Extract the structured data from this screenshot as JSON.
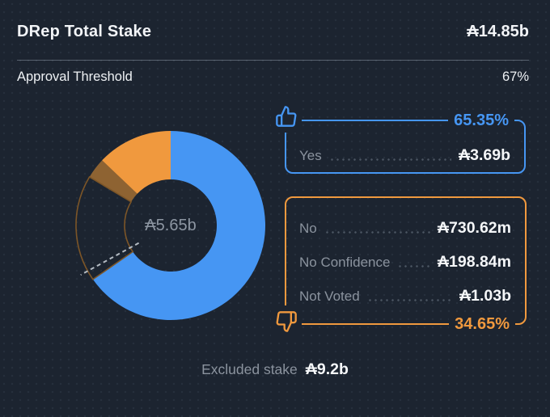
{
  "header": {
    "title": "DRep Total Stake",
    "total_stake": "₳14.85b"
  },
  "threshold": {
    "label": "Approval Threshold",
    "value": "67%"
  },
  "chart_data": {
    "type": "pie",
    "subtype": "donut",
    "title": "DRep Total Stake vote distribution",
    "center_label": "₳5.65b",
    "total_voted_stake": "₳5.65b",
    "threshold_percent": 67,
    "legend_position": "right",
    "segments": [
      {
        "name": "Yes",
        "value": "₳3.69b",
        "percent": 65.35,
        "color": "#4696f3",
        "style": "fill"
      },
      {
        "name": "Not Voted",
        "value": "₳1.03b",
        "percent": 18.23,
        "color": "#7c5527",
        "style": "outline"
      },
      {
        "name": "No Confidence",
        "value": "₳198.84m",
        "percent": 3.52,
        "color": "#8e6332",
        "style": "fill"
      },
      {
        "name": "No",
        "value": "₳730.62m",
        "percent": 12.9,
        "color": "#f0993e",
        "style": "fill"
      }
    ],
    "excluded_stake": "₳9.2b"
  },
  "yes_box": {
    "percent": "65.35%",
    "rows": [
      {
        "label": "Yes",
        "value": "₳3.69b"
      }
    ]
  },
  "no_box": {
    "percent": "34.65%",
    "rows": [
      {
        "label": "No",
        "value": "₳730.62m"
      },
      {
        "label": "No Confidence",
        "value": "₳198.84m"
      },
      {
        "label": "Not Voted",
        "value": "₳1.03b"
      }
    ]
  },
  "footer": {
    "label": "Excluded stake",
    "value": "₳9.2b"
  },
  "colors": {
    "background": "#1c2430",
    "yes_blue": "#4696f3",
    "no_orange": "#f0993e",
    "no_confidence_brown": "#8e6332",
    "outline_brown": "#7c5527",
    "threshold_dash": "#b3bac2",
    "label_gray": "#8b939e",
    "value_white": "#f5f7f9"
  }
}
